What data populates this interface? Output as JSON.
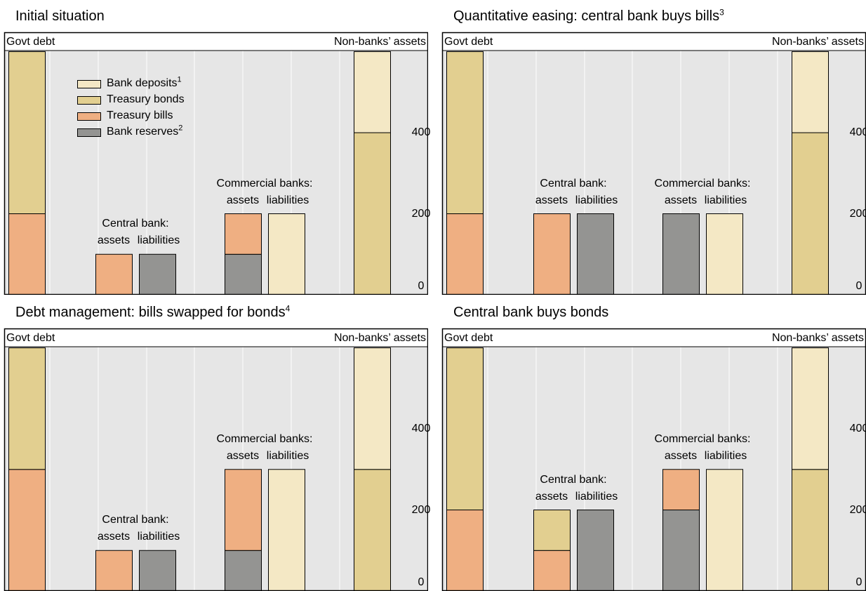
{
  "colors": {
    "bank_deposits": "#f4e8c5",
    "treasury_bonds": "#e2cf90",
    "treasury_bills": "#efaf82",
    "bank_reserves": "#949492",
    "plot_bg": "#e6e6e6",
    "gridline": "#ffffff"
  },
  "labels": {
    "govt_debt": "Govt debt",
    "non_banks_assets": "Non-banks’ assets",
    "central_bank": "Central bank:",
    "commercial_banks": "Commercial banks:",
    "assets": "assets",
    "liabilities": "liabilities"
  },
  "legend": {
    "items": [
      {
        "key": "bank_deposits",
        "label": "Bank deposits",
        "note": "1"
      },
      {
        "key": "treasury_bonds",
        "label": "Treasury bonds",
        "note": ""
      },
      {
        "key": "treasury_bills",
        "label": "Treasury bills",
        "note": ""
      },
      {
        "key": "bank_reserves",
        "label": "Bank reserves",
        "note": "2"
      }
    ]
  },
  "chart_data": [
    {
      "type": "bar",
      "title": "Initial situation",
      "title_note": "",
      "ylim": [
        0,
        580
      ],
      "yticks": [
        0,
        200,
        400
      ],
      "bars": [
        {
          "name": "Govt debt",
          "segments": [
            {
              "key": "treasury_bills",
              "value": 200
            },
            {
              "key": "treasury_bonds",
              "value": 400
            }
          ]
        },
        {
          "name": "Central bank assets",
          "segments": [
            {
              "key": "treasury_bills",
              "value": 100
            }
          ]
        },
        {
          "name": "Central bank liabilities",
          "segments": [
            {
              "key": "bank_reserves",
              "value": 100
            }
          ]
        },
        {
          "name": "Commercial banks assets",
          "segments": [
            {
              "key": "bank_reserves",
              "value": 100
            },
            {
              "key": "treasury_bills",
              "value": 100
            }
          ]
        },
        {
          "name": "Commercial banks liabilities",
          "segments": [
            {
              "key": "bank_deposits",
              "value": 200
            }
          ]
        },
        {
          "name": "Non-banks’ assets",
          "segments": [
            {
              "key": "treasury_bonds",
              "value": 400
            },
            {
              "key": "bank_deposits",
              "value": 200
            }
          ]
        }
      ]
    },
    {
      "type": "bar",
      "title": "Quantitative easing: central bank buys bills",
      "title_note": "3",
      "ylim": [
        0,
        580
      ],
      "yticks": [
        0,
        200,
        400
      ],
      "bars": [
        {
          "name": "Govt debt",
          "segments": [
            {
              "key": "treasury_bills",
              "value": 200
            },
            {
              "key": "treasury_bonds",
              "value": 400
            }
          ]
        },
        {
          "name": "Central bank assets",
          "segments": [
            {
              "key": "treasury_bills",
              "value": 200
            }
          ]
        },
        {
          "name": "Central bank liabilities",
          "segments": [
            {
              "key": "bank_reserves",
              "value": 200
            }
          ]
        },
        {
          "name": "Commercial banks assets",
          "segments": [
            {
              "key": "bank_reserves",
              "value": 200
            }
          ]
        },
        {
          "name": "Commercial banks liabilities",
          "segments": [
            {
              "key": "bank_deposits",
              "value": 200
            }
          ]
        },
        {
          "name": "Non-banks’ assets",
          "segments": [
            {
              "key": "treasury_bonds",
              "value": 400
            },
            {
              "key": "bank_deposits",
              "value": 200
            }
          ]
        }
      ]
    },
    {
      "type": "bar",
      "title": "Debt management: bills swapped for bonds",
      "title_note": "4",
      "ylim": [
        0,
        580
      ],
      "yticks": [
        0,
        200,
        400
      ],
      "bars": [
        {
          "name": "Govt debt",
          "segments": [
            {
              "key": "treasury_bills",
              "value": 300
            },
            {
              "key": "treasury_bonds",
              "value": 300
            }
          ]
        },
        {
          "name": "Central bank assets",
          "segments": [
            {
              "key": "treasury_bills",
              "value": 100
            }
          ]
        },
        {
          "name": "Central bank liabilities",
          "segments": [
            {
              "key": "bank_reserves",
              "value": 100
            }
          ]
        },
        {
          "name": "Commercial banks assets",
          "segments": [
            {
              "key": "bank_reserves",
              "value": 100
            },
            {
              "key": "treasury_bills",
              "value": 200
            }
          ]
        },
        {
          "name": "Commercial banks liabilities",
          "segments": [
            {
              "key": "bank_deposits",
              "value": 300
            }
          ]
        },
        {
          "name": "Non-banks’ assets",
          "segments": [
            {
              "key": "treasury_bonds",
              "value": 300
            },
            {
              "key": "bank_deposits",
              "value": 300
            }
          ]
        }
      ]
    },
    {
      "type": "bar",
      "title": "Central bank buys bonds",
      "title_note": "",
      "ylim": [
        0,
        580
      ],
      "yticks": [
        0,
        200,
        400
      ],
      "bars": [
        {
          "name": "Govt debt",
          "segments": [
            {
              "key": "treasury_bills",
              "value": 200
            },
            {
              "key": "treasury_bonds",
              "value": 400
            }
          ]
        },
        {
          "name": "Central bank assets",
          "segments": [
            {
              "key": "treasury_bills",
              "value": 100
            },
            {
              "key": "treasury_bonds",
              "value": 100
            }
          ]
        },
        {
          "name": "Central bank liabilities",
          "segments": [
            {
              "key": "bank_reserves",
              "value": 200
            }
          ]
        },
        {
          "name": "Commercial banks assets",
          "segments": [
            {
              "key": "bank_reserves",
              "value": 200
            },
            {
              "key": "treasury_bills",
              "value": 100
            }
          ]
        },
        {
          "name": "Commercial banks liabilities",
          "segments": [
            {
              "key": "bank_deposits",
              "value": 300
            }
          ]
        },
        {
          "name": "Non-banks’ assets",
          "segments": [
            {
              "key": "treasury_bonds",
              "value": 300
            },
            {
              "key": "bank_deposits",
              "value": 300
            }
          ]
        }
      ]
    }
  ]
}
